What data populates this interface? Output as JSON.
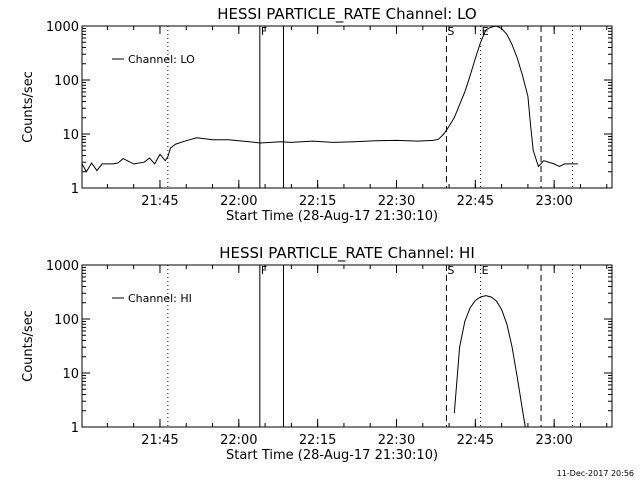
{
  "footer_timestamp": "11-Dec-2017 20:56",
  "chart_data": [
    {
      "type": "line",
      "title": "HESSI PARTICLE_RATE Channel: LO",
      "xlabel": "Start Time (28-Aug-17 21:30:10)",
      "ylabel": "Counts/sec",
      "yscale": "log",
      "ylim": [
        1,
        1000
      ],
      "xlim": [
        "21:30:10",
        "23:11:00"
      ],
      "x_ticks": [
        "21:45",
        "22:00",
        "22:15",
        "22:30",
        "22:45",
        "23:00"
      ],
      "y_ticks": [
        "1",
        "10",
        "100",
        "1000"
      ],
      "legend": {
        "label": "Channel: LO",
        "placement": "top-left"
      },
      "markers": [
        {
          "time": "21:46:30",
          "style": "dotted",
          "label": ""
        },
        {
          "time": "22:04:00",
          "style": "solid",
          "label": "F"
        },
        {
          "time": "22:08:30",
          "style": "solid",
          "label": ""
        },
        {
          "time": "22:39:30",
          "style": "dashed",
          "label": "S"
        },
        {
          "time": "22:46:00",
          "style": "dotted",
          "label": "E"
        },
        {
          "time": "22:57:30",
          "style": "dashed",
          "label": ""
        },
        {
          "time": "23:03:30",
          "style": "dotted",
          "label": ""
        }
      ],
      "series": [
        {
          "name": "Channel: LO",
          "x": [
            "21:30:10",
            "21:31:00",
            "21:32:00",
            "21:33:00",
            "21:34:00",
            "21:35:00",
            "21:36:00",
            "21:37:00",
            "21:38:00",
            "21:40:00",
            "21:42:00",
            "21:43:00",
            "21:44:00",
            "21:45:00",
            "21:46:00",
            "21:46:30",
            "21:47:00",
            "21:48:00",
            "21:50:00",
            "21:52:00",
            "21:55:00",
            "21:58:00",
            "22:00:00",
            "22:02:00",
            "22:04:00",
            "22:06:00",
            "22:08:00",
            "22:10:00",
            "22:14:00",
            "22:18:00",
            "22:22:00",
            "22:26:00",
            "22:30:00",
            "22:34:00",
            "22:37:00",
            "22:38:00",
            "22:39:00",
            "22:40:00",
            "22:41:00",
            "22:42:00",
            "22:43:00",
            "22:44:00",
            "22:45:00",
            "22:46:00",
            "22:47:00",
            "22:48:00",
            "22:49:00",
            "22:50:00",
            "22:51:00",
            "22:52:00",
            "22:53:00",
            "22:54:00",
            "22:55:00",
            "22:55:30",
            "22:56:00",
            "22:57:00",
            "22:58:00",
            "23:00:00",
            "23:01:00",
            "23:02:00",
            "23:03:00",
            "23:04:30"
          ],
          "y": [
            2.8,
            2.0,
            2.9,
            2.1,
            2.8,
            2.8,
            2.8,
            2.9,
            3.5,
            2.8,
            3.0,
            3.6,
            2.8,
            4.2,
            3.2,
            3.8,
            5.5,
            6.5,
            7.5,
            8.5,
            7.8,
            7.8,
            7.5,
            7.2,
            6.8,
            7.0,
            7.2,
            7.0,
            7.4,
            7.0,
            7.2,
            7.5,
            7.6,
            7.4,
            7.6,
            8.0,
            10,
            14,
            20,
            35,
            60,
            120,
            250,
            500,
            850,
            950,
            1000,
            900,
            700,
            450,
            250,
            120,
            50,
            15,
            5,
            2.5,
            3.2,
            2.8,
            2.5,
            2.8,
            2.8,
            2.8
          ]
        }
      ]
    },
    {
      "type": "line",
      "title": "HESSI PARTICLE_RATE Channel: HI",
      "xlabel": "Start Time (28-Aug-17 21:30:10)",
      "ylabel": "Counts/sec",
      "yscale": "log",
      "ylim": [
        1,
        1000
      ],
      "xlim": [
        "21:30:10",
        "23:11:00"
      ],
      "x_ticks": [
        "21:45",
        "22:00",
        "22:15",
        "22:30",
        "22:45",
        "23:00"
      ],
      "y_ticks": [
        "1",
        "10",
        "100",
        "1000"
      ],
      "legend": {
        "label": "Channel: HI",
        "placement": "top-left"
      },
      "markers": [
        {
          "time": "21:46:30",
          "style": "dotted",
          "label": ""
        },
        {
          "time": "22:04:00",
          "style": "solid",
          "label": "F"
        },
        {
          "time": "22:08:30",
          "style": "solid",
          "label": ""
        },
        {
          "time": "22:39:30",
          "style": "dashed",
          "label": "S"
        },
        {
          "time": "22:46:00",
          "style": "dotted",
          "label": "E"
        },
        {
          "time": "22:57:30",
          "style": "dashed",
          "label": ""
        },
        {
          "time": "23:03:30",
          "style": "dotted",
          "label": ""
        }
      ],
      "series": [
        {
          "name": "Channel: HI",
          "x": [
            "22:41:00",
            "22:42:00",
            "22:43:00",
            "22:44:00",
            "22:45:00",
            "22:46:00",
            "22:47:00",
            "22:48:00",
            "22:49:00",
            "22:50:00",
            "22:51:00",
            "22:52:00",
            "22:53:00",
            "22:54:00",
            "22:54:30"
          ],
          "y": [
            1.8,
            30,
            90,
            160,
            220,
            255,
            270,
            255,
            215,
            150,
            80,
            30,
            8,
            2,
            1
          ]
        }
      ]
    }
  ]
}
